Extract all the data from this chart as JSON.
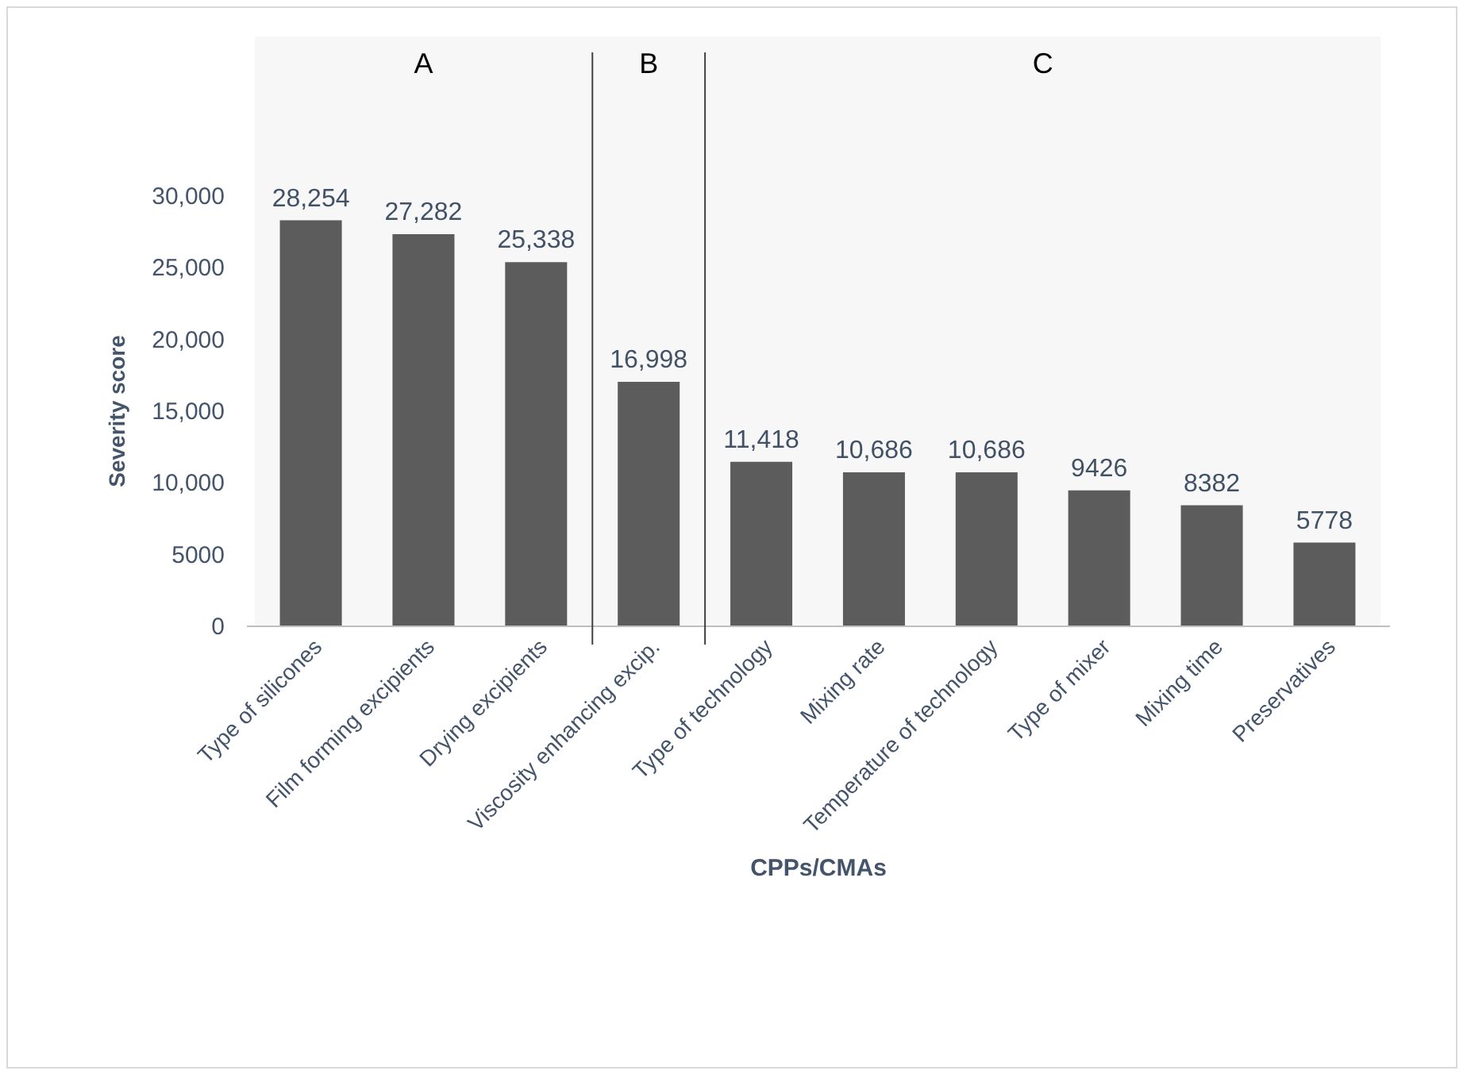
{
  "chart_data": {
    "type": "bar",
    "xlabel": "CPPs/CMAs",
    "ylabel": "Severity score",
    "categories": [
      "Type of silicones",
      "Film forming excipients",
      "Drying excipients",
      "Viscosity enhancing excip.",
      "Type of technology",
      "Mixing rate",
      "Temperature of technology",
      "Type of mixer",
      "Mixing time",
      "Preservatives"
    ],
    "values": [
      28254,
      27282,
      25338,
      16998,
      11418,
      10686,
      10686,
      9426,
      8382,
      5778
    ],
    "value_labels": [
      "28,254",
      "27,282",
      "25,338",
      "16,998",
      "11,418",
      "10,686",
      "10,686",
      "9426",
      "8382",
      "5778"
    ],
    "color": "#5f5f5f",
    "ylim": [
      0,
      30000
    ],
    "yticks": [
      0,
      5000,
      {
        "value": 10000,
        "label": "10,000"
      },
      {
        "value": 15000,
        "label": "15,000"
      },
      {
        "value": 20000,
        "label": "20,000"
      },
      {
        "value": 25000,
        "label": "25,000"
      },
      {
        "value": 30000,
        "label": "30,000"
      }
    ],
    "bands": [
      {
        "axis": "x",
        "from": "Type of silicones",
        "to": "Drying excipients",
        "label": "A"
      },
      {
        "axis": "x",
        "from": "Viscosity enhancing excip.",
        "to": "Viscosity enhancing excip.",
        "label": "B"
      },
      {
        "axis": "x",
        "from": "Type of technology",
        "to": "Preservatives",
        "label": "C"
      }
    ]
  }
}
